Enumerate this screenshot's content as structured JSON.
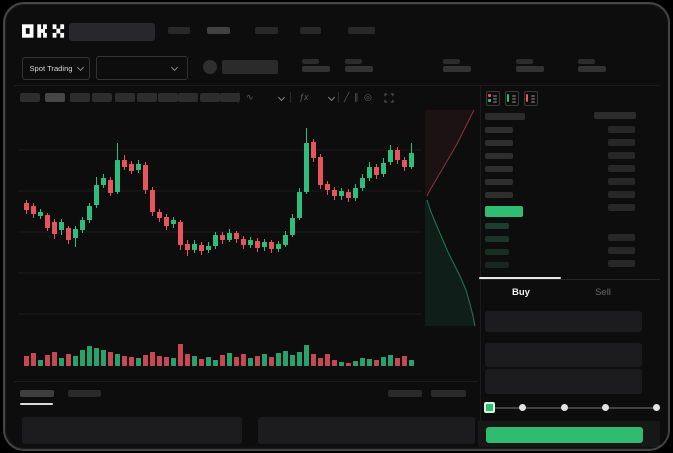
{
  "window": {
    "brand": "OKX"
  },
  "header": {
    "market_selector_label": "Spot Trading",
    "nav_placeholder_count": 5,
    "stat_group_count": 5
  },
  "toolbar": {
    "interval_chip_count": 10,
    "active_chip_index": 1,
    "icons": [
      "chart-style",
      "chevron-down",
      "indicators",
      "chevron-down",
      "trendline",
      "compare",
      "target",
      "fullscreen"
    ]
  },
  "orderbook": {
    "view_icons": [
      "book-combined",
      "book-bids",
      "book-asks"
    ],
    "ask_row_count": 6,
    "bid_row_count": 4,
    "right_column_top_row_count": 7,
    "right_column_bottom_row_count": 3
  },
  "trade_panel": {
    "buy_tab_label": "Buy",
    "sell_tab_label": "Sell",
    "active_tab": "Buy",
    "field_count": 3,
    "slider_stop_count": 5,
    "slider_value_index": 0
  },
  "bottom_panel": {
    "tab_placeholder_count": 2,
    "right_placeholder_count": 2,
    "active_tab_index": 0
  },
  "colors": {
    "up": "#2ebd7c",
    "down": "#e8545e",
    "last_price_bg": "#2ebd72",
    "submit_button": "#2fbc70",
    "placeholder": "#2a2a2a",
    "placeholder_bright": "#414141",
    "panel_field": "#1c1c1e"
  },
  "chart_data": [
    {
      "type": "candlestick",
      "title": "",
      "x_unit": "index",
      "y_unit": "price",
      "ylim": [
        70,
        205
      ],
      "grid": "horizontal-faint",
      "candles_ohlc": [
        [
          127,
          130,
          116,
          120
        ],
        [
          124,
          127,
          112,
          116
        ],
        [
          114,
          121,
          111,
          118
        ],
        [
          115,
          117,
          99,
          102
        ],
        [
          108,
          111,
          91,
          96
        ],
        [
          100,
          111,
          95,
          108
        ],
        [
          102,
          104,
          86,
          90
        ],
        [
          92,
          104,
          83,
          101
        ],
        [
          100,
          113,
          97,
          110
        ],
        [
          110,
          127,
          107,
          124
        ],
        [
          125,
          153,
          122,
          145
        ],
        [
          145,
          156,
          142,
          152
        ],
        [
          150,
          153,
          134,
          137
        ],
        [
          138,
          187,
          136,
          170
        ],
        [
          170,
          175,
          160,
          163
        ],
        [
          166,
          169,
          156,
          159
        ],
        [
          160,
          170,
          157,
          166
        ],
        [
          165,
          168,
          136,
          140
        ],
        [
          140,
          143,
          114,
          118
        ],
        [
          118,
          121,
          108,
          112
        ],
        [
          113,
          116,
          100,
          104
        ],
        [
          106,
          113,
          102,
          110
        ],
        [
          108,
          110,
          80,
          85
        ],
        [
          86,
          90,
          74,
          80
        ],
        [
          80,
          90,
          77,
          86
        ],
        [
          85,
          88,
          75,
          79
        ],
        [
          80,
          88,
          77,
          84
        ],
        [
          84,
          98,
          81,
          95
        ],
        [
          95,
          98,
          86,
          90
        ],
        [
          90,
          101,
          88,
          97
        ],
        [
          97,
          99,
          87,
          91
        ],
        [
          91,
          94,
          81,
          85
        ],
        [
          85,
          93,
          82,
          90
        ],
        [
          89,
          92,
          78,
          82
        ],
        [
          83,
          91,
          79,
          88
        ],
        [
          88,
          90,
          77,
          81
        ],
        [
          81,
          89,
          78,
          86
        ],
        [
          85,
          99,
          83,
          95
        ],
        [
          95,
          116,
          93,
          112
        ],
        [
          112,
          142,
          110,
          138
        ],
        [
          138,
          202,
          136,
          187
        ],
        [
          188,
          191,
          168,
          172
        ],
        [
          173,
          176,
          141,
          145
        ],
        [
          146,
          149,
          135,
          140
        ],
        [
          140,
          143,
          130,
          134
        ],
        [
          134,
          142,
          130,
          139
        ],
        [
          138,
          141,
          128,
          132
        ],
        [
          132,
          146,
          129,
          142
        ],
        [
          142,
          156,
          139,
          152
        ],
        [
          152,
          168,
          149,
          163
        ],
        [
          163,
          166,
          151,
          155
        ],
        [
          156,
          172,
          153,
          167
        ],
        [
          168,
          185,
          165,
          180
        ],
        [
          180,
          183,
          166,
          170
        ],
        [
          170,
          173,
          159,
          163
        ],
        [
          163,
          187,
          161,
          177
        ]
      ]
    },
    {
      "type": "bar",
      "name": "volume",
      "values": [
        10,
        13,
        6,
        11,
        14,
        8,
        12,
        10,
        16,
        20,
        18,
        16,
        14,
        12,
        10,
        9,
        8,
        11,
        14,
        10,
        9,
        8,
        22,
        12,
        10,
        7,
        9,
        6,
        11,
        13,
        9,
        12,
        8,
        10,
        12,
        9,
        13,
        15,
        11,
        14,
        21,
        12,
        8,
        12,
        6,
        4,
        3,
        5,
        8,
        7,
        6,
        9,
        11,
        8,
        10,
        6
      ]
    },
    {
      "type": "area",
      "name": "depth",
      "asks_points": [
        [
          474,
          110
        ],
        [
          469,
          120
        ],
        [
          463,
          132
        ],
        [
          457,
          144
        ],
        [
          450,
          156
        ],
        [
          443,
          168
        ],
        [
          436,
          180
        ],
        [
          430,
          190
        ],
        [
          427,
          196
        ]
      ],
      "bids_points": [
        [
          427,
          200
        ],
        [
          431,
          212
        ],
        [
          436,
          224
        ],
        [
          442,
          238
        ],
        [
          448,
          252
        ],
        [
          454,
          264
        ],
        [
          460,
          276
        ],
        [
          466,
          290
        ],
        [
          470,
          304
        ],
        [
          473,
          316
        ],
        [
          475,
          326
        ]
      ]
    }
  ]
}
